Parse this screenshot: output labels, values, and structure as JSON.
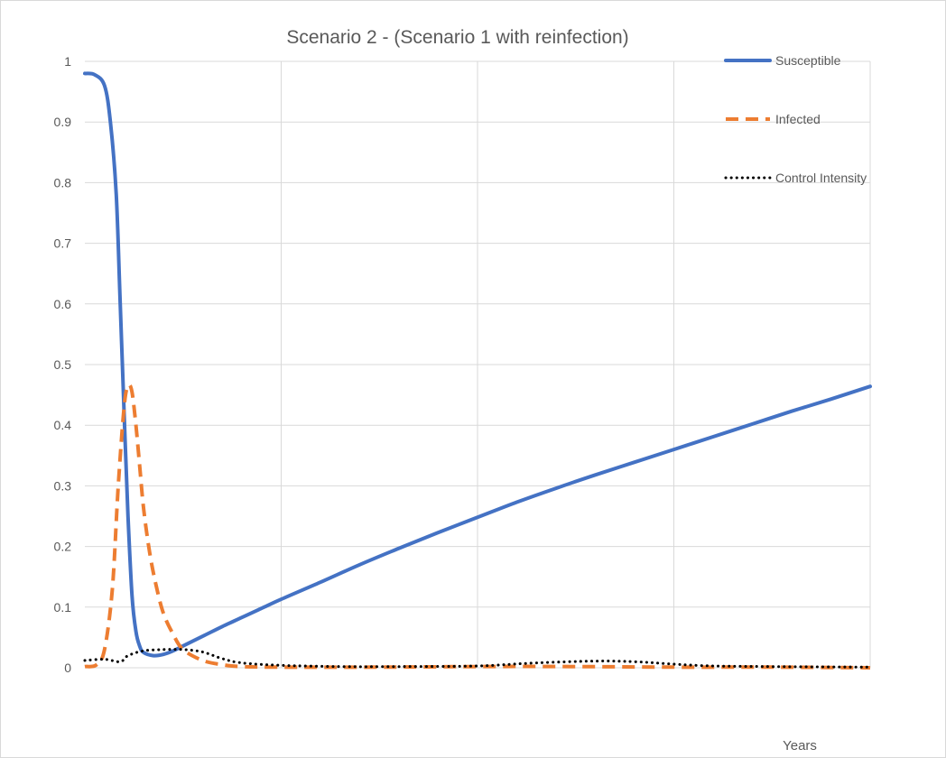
{
  "chart_data": {
    "type": "line",
    "title": "Scenario 2  - (Scenario 1 with reinfection)",
    "xlabel": "Years",
    "ylabel": "",
    "xlim": [
      0,
      4
    ],
    "ylim": [
      0,
      1
    ],
    "x_gridlines": [
      1,
      2,
      3,
      4
    ],
    "y_ticks": [
      "0",
      "0.1",
      "0.2",
      "0.3",
      "0.4",
      "0.5",
      "0.6",
      "0.7",
      "0.8",
      "0.9",
      "1"
    ],
    "grid": true,
    "legend_position": "top-right",
    "series": [
      {
        "name": "Susceptible",
        "color": "#4472c4",
        "style": "solid",
        "x": [
          0,
          0.05,
          0.1,
          0.13,
          0.16,
          0.18,
          0.2,
          0.22,
          0.24,
          0.26,
          0.28,
          0.3,
          0.35,
          0.4,
          0.45,
          0.5,
          0.6,
          0.7,
          0.8,
          0.9,
          1.0,
          1.2,
          1.4,
          1.6,
          1.8,
          2.0,
          2.2,
          2.4,
          2.6,
          2.8,
          3.0,
          3.2,
          3.4,
          3.6,
          3.8,
          4.0
        ],
        "y": [
          0.98,
          0.978,
          0.96,
          0.9,
          0.78,
          0.6,
          0.42,
          0.25,
          0.12,
          0.06,
          0.035,
          0.025,
          0.02,
          0.022,
          0.028,
          0.036,
          0.052,
          0.068,
          0.083,
          0.098,
          0.113,
          0.141,
          0.17,
          0.197,
          0.223,
          0.248,
          0.273,
          0.296,
          0.318,
          0.339,
          0.36,
          0.381,
          0.402,
          0.423,
          0.443,
          0.464
        ]
      },
      {
        "name": "Infected",
        "color": "#ed7d31",
        "style": "dashed",
        "x": [
          0,
          0.06,
          0.1,
          0.14,
          0.17,
          0.2,
          0.22,
          0.24,
          0.26,
          0.28,
          0.3,
          0.33,
          0.36,
          0.4,
          0.45,
          0.5,
          0.6,
          0.7,
          0.8,
          1.0,
          1.5,
          2.0,
          2.5,
          3.0,
          3.5,
          4.0
        ],
        "y": [
          0.002,
          0.005,
          0.03,
          0.13,
          0.3,
          0.43,
          0.465,
          0.455,
          0.4,
          0.33,
          0.26,
          0.19,
          0.14,
          0.09,
          0.055,
          0.03,
          0.012,
          0.005,
          0.002,
          0.001,
          0.001,
          0.002,
          0.002,
          0.001,
          0.001,
          0.0
        ]
      },
      {
        "name": "Control Intensity",
        "color": "#000000",
        "style": "dotted",
        "x": [
          0,
          0.1,
          0.18,
          0.22,
          0.3,
          0.4,
          0.5,
          0.6,
          0.7,
          0.8,
          1.0,
          1.3,
          1.6,
          2.0,
          2.3,
          2.6,
          2.8,
          3.0,
          3.2,
          3.5,
          4.0
        ],
        "y": [
          0.012,
          0.014,
          0.01,
          0.02,
          0.028,
          0.03,
          0.03,
          0.026,
          0.015,
          0.008,
          0.004,
          0.002,
          0.002,
          0.003,
          0.008,
          0.011,
          0.01,
          0.006,
          0.003,
          0.002,
          0.001
        ]
      }
    ]
  }
}
